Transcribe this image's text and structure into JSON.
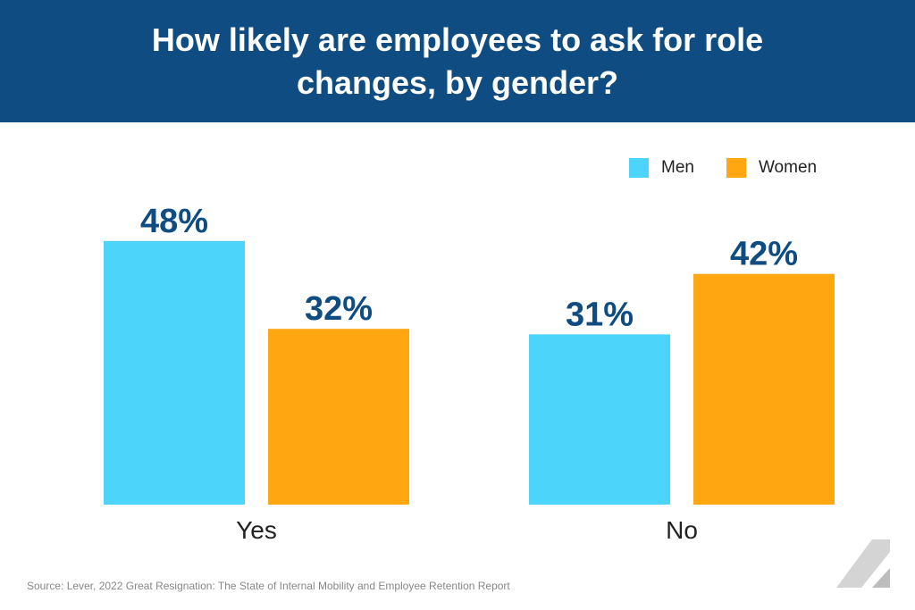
{
  "header": {
    "title": "How likely are employees to ask for role changes, by gender?"
  },
  "legend": [
    {
      "label": "Men",
      "color": "#4dd4fb"
    },
    {
      "label": "Women",
      "color": "#ffa610"
    }
  ],
  "chart_data": {
    "type": "bar",
    "title": "How likely are employees to ask for role changes, by gender?",
    "categories": [
      "Yes",
      "No"
    ],
    "series": [
      {
        "name": "Men",
        "values": [
          48,
          31
        ],
        "labels": [
          "48%",
          "31%"
        ],
        "color": "#4dd4fb"
      },
      {
        "name": "Women",
        "values": [
          32,
          42
        ],
        "labels": [
          "32%",
          "42%"
        ],
        "color": "#ffa610"
      }
    ],
    "xlabel": "",
    "ylabel": "",
    "ylim": [
      0,
      100
    ],
    "grid": false,
    "legend_position": "top-right"
  },
  "footer": {
    "source": "Source: Lever, 2022 Great Resignation: The State of Internal Mobility and Employee Retention Report"
  },
  "colors": {
    "header_bg": "#0f4c81",
    "label_text": "#0f4c81"
  }
}
